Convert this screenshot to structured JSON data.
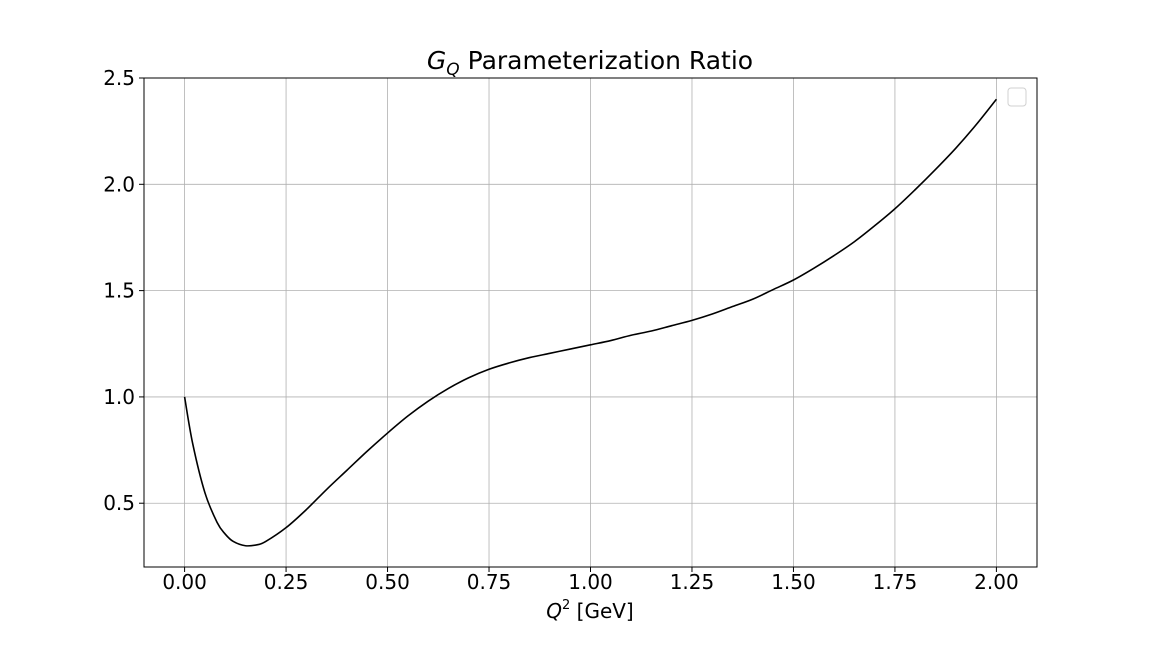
{
  "chart_data": {
    "type": "line",
    "title_sym": "G",
    "title_sub": "Q",
    "title_rest": " Parameterization Ratio",
    "xlabel_sym": "Q",
    "xlabel_sup": "2",
    "xlabel_rest": " [GeV]",
    "ylabel": "",
    "xlim": [
      -0.1,
      2.1
    ],
    "ylim": [
      0.2,
      2.5
    ],
    "xticks": [
      0.0,
      0.25,
      0.5,
      0.75,
      1.0,
      1.25,
      1.5,
      1.75,
      2.0
    ],
    "xtick_labels": [
      "0.00",
      "0.25",
      "0.50",
      "0.75",
      "1.00",
      "1.25",
      "1.50",
      "1.75",
      "2.00"
    ],
    "yticks": [
      0.5,
      1.0,
      1.5,
      2.0,
      2.5
    ],
    "ytick_labels": [
      "0.5",
      "1.0",
      "1.5",
      "2.0",
      "2.5"
    ],
    "grid": true,
    "legend": {
      "placement": "upper-right",
      "entries": []
    },
    "line_color": "#000000",
    "series": [
      {
        "x": [
          0.0,
          0.02,
          0.05,
          0.08,
          0.1,
          0.12,
          0.15,
          0.18,
          0.2,
          0.25,
          0.3,
          0.35,
          0.4,
          0.45,
          0.5,
          0.55,
          0.6,
          0.65,
          0.7,
          0.75,
          0.8,
          0.85,
          0.9,
          0.95,
          1.0,
          1.05,
          1.1,
          1.15,
          1.2,
          1.25,
          1.3,
          1.35,
          1.4,
          1.45,
          1.5,
          1.55,
          1.6,
          1.65,
          1.7,
          1.75,
          1.8,
          1.85,
          1.9,
          1.95,
          2.0
        ],
        "y": [
          1.0,
          0.78,
          0.55,
          0.41,
          0.355,
          0.32,
          0.3,
          0.305,
          0.32,
          0.385,
          0.47,
          0.565,
          0.655,
          0.745,
          0.83,
          0.91,
          0.98,
          1.04,
          1.09,
          1.13,
          1.16,
          1.185,
          1.205,
          1.225,
          1.245,
          1.265,
          1.29,
          1.31,
          1.335,
          1.36,
          1.39,
          1.425,
          1.46,
          1.505,
          1.55,
          1.605,
          1.665,
          1.73,
          1.805,
          1.885,
          1.975,
          2.07,
          2.17,
          2.28,
          2.4
        ]
      }
    ]
  }
}
